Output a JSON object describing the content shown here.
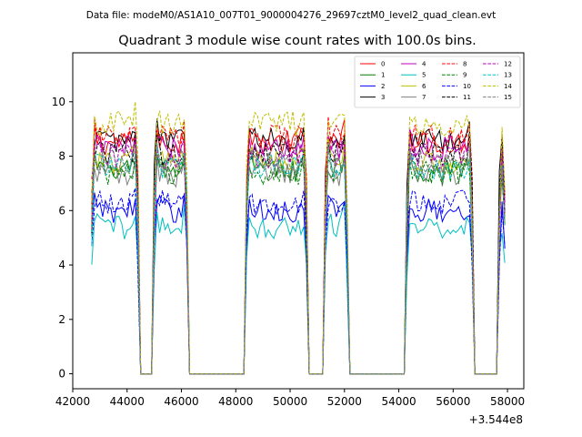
{
  "suptitle": "Data file: modeM0/AS1A10_007T01_9000004276_29697cztM0_level2_quad_clean.evt",
  "chart_data": {
    "type": "line",
    "title": "Quadrant 3 module wise count rates with 100.0s bins.",
    "xlabel": "",
    "ylabel": "",
    "x_offset_label": "+3.544e8",
    "xlim": [
      42000,
      58600
    ],
    "ylim": [
      -0.55,
      11.8
    ],
    "x_ticks": [
      42000,
      44000,
      46000,
      48000,
      50000,
      52000,
      54000,
      56000,
      58000
    ],
    "x_tick_labels": [
      "42000",
      "44000",
      "46000",
      "48000",
      "50000",
      "52000",
      "54000",
      "56000",
      "58000"
    ],
    "y_ticks": [
      0,
      2,
      4,
      6,
      8,
      10
    ],
    "y_tick_labels": [
      "0",
      "2",
      "4",
      "6",
      "8",
      "10"
    ],
    "segments": [
      {
        "start": 42700,
        "end": 44400
      },
      {
        "start": 45000,
        "end": 46200
      },
      {
        "start": 48400,
        "end": 50600
      },
      {
        "start": 51300,
        "end": 52100
      },
      {
        "start": 54300,
        "end": 56700
      },
      {
        "start": 57700,
        "end": 57900
      }
    ],
    "gaps": [
      {
        "start": 44500,
        "end": 44900
      },
      {
        "start": 46300,
        "end": 48300
      },
      {
        "start": 50700,
        "end": 51200
      },
      {
        "start": 52200,
        "end": 54200
      },
      {
        "start": 56800,
        "end": 57600
      }
    ],
    "legend": {
      "position": "top-right",
      "columns": 4
    },
    "series": [
      {
        "name": "0",
        "color": "#ff0000",
        "dash": "solid",
        "level": 8.5
      },
      {
        "name": "1",
        "color": "#008000",
        "dash": "solid",
        "level": 7.5
      },
      {
        "name": "2",
        "color": "#0000ff",
        "dash": "solid",
        "level": 6.0
      },
      {
        "name": "3",
        "color": "#000000",
        "dash": "solid",
        "level": 8.6
      },
      {
        "name": "4",
        "color": "#bf00bf",
        "dash": "solid",
        "level": 8.3
      },
      {
        "name": "5",
        "color": "#00bfbf",
        "dash": "solid",
        "level": 5.4
      },
      {
        "name": "6",
        "color": "#bfbf00",
        "dash": "solid",
        "level": 7.8
      },
      {
        "name": "7",
        "color": "#808080",
        "dash": "solid",
        "level": 7.3
      },
      {
        "name": "8",
        "color": "#ff0000",
        "dash": "dashed",
        "level": 8.7
      },
      {
        "name": "9",
        "color": "#008000",
        "dash": "dashed",
        "level": 7.4
      },
      {
        "name": "10",
        "color": "#0000ff",
        "dash": "dashed",
        "level": 6.3
      },
      {
        "name": "11",
        "color": "#000000",
        "dash": "dashed",
        "level": 8.1
      },
      {
        "name": "12",
        "color": "#bf00bf",
        "dash": "dashed",
        "level": 8.0
      },
      {
        "name": "13",
        "color": "#00bfbf",
        "dash": "dashed",
        "level": 7.6
      },
      {
        "name": "14",
        "color": "#bfbf00",
        "dash": "dashed",
        "level": 9.2
      },
      {
        "name": "15",
        "color": "#808080",
        "dash": "dashed",
        "level": 7.8
      }
    ]
  }
}
